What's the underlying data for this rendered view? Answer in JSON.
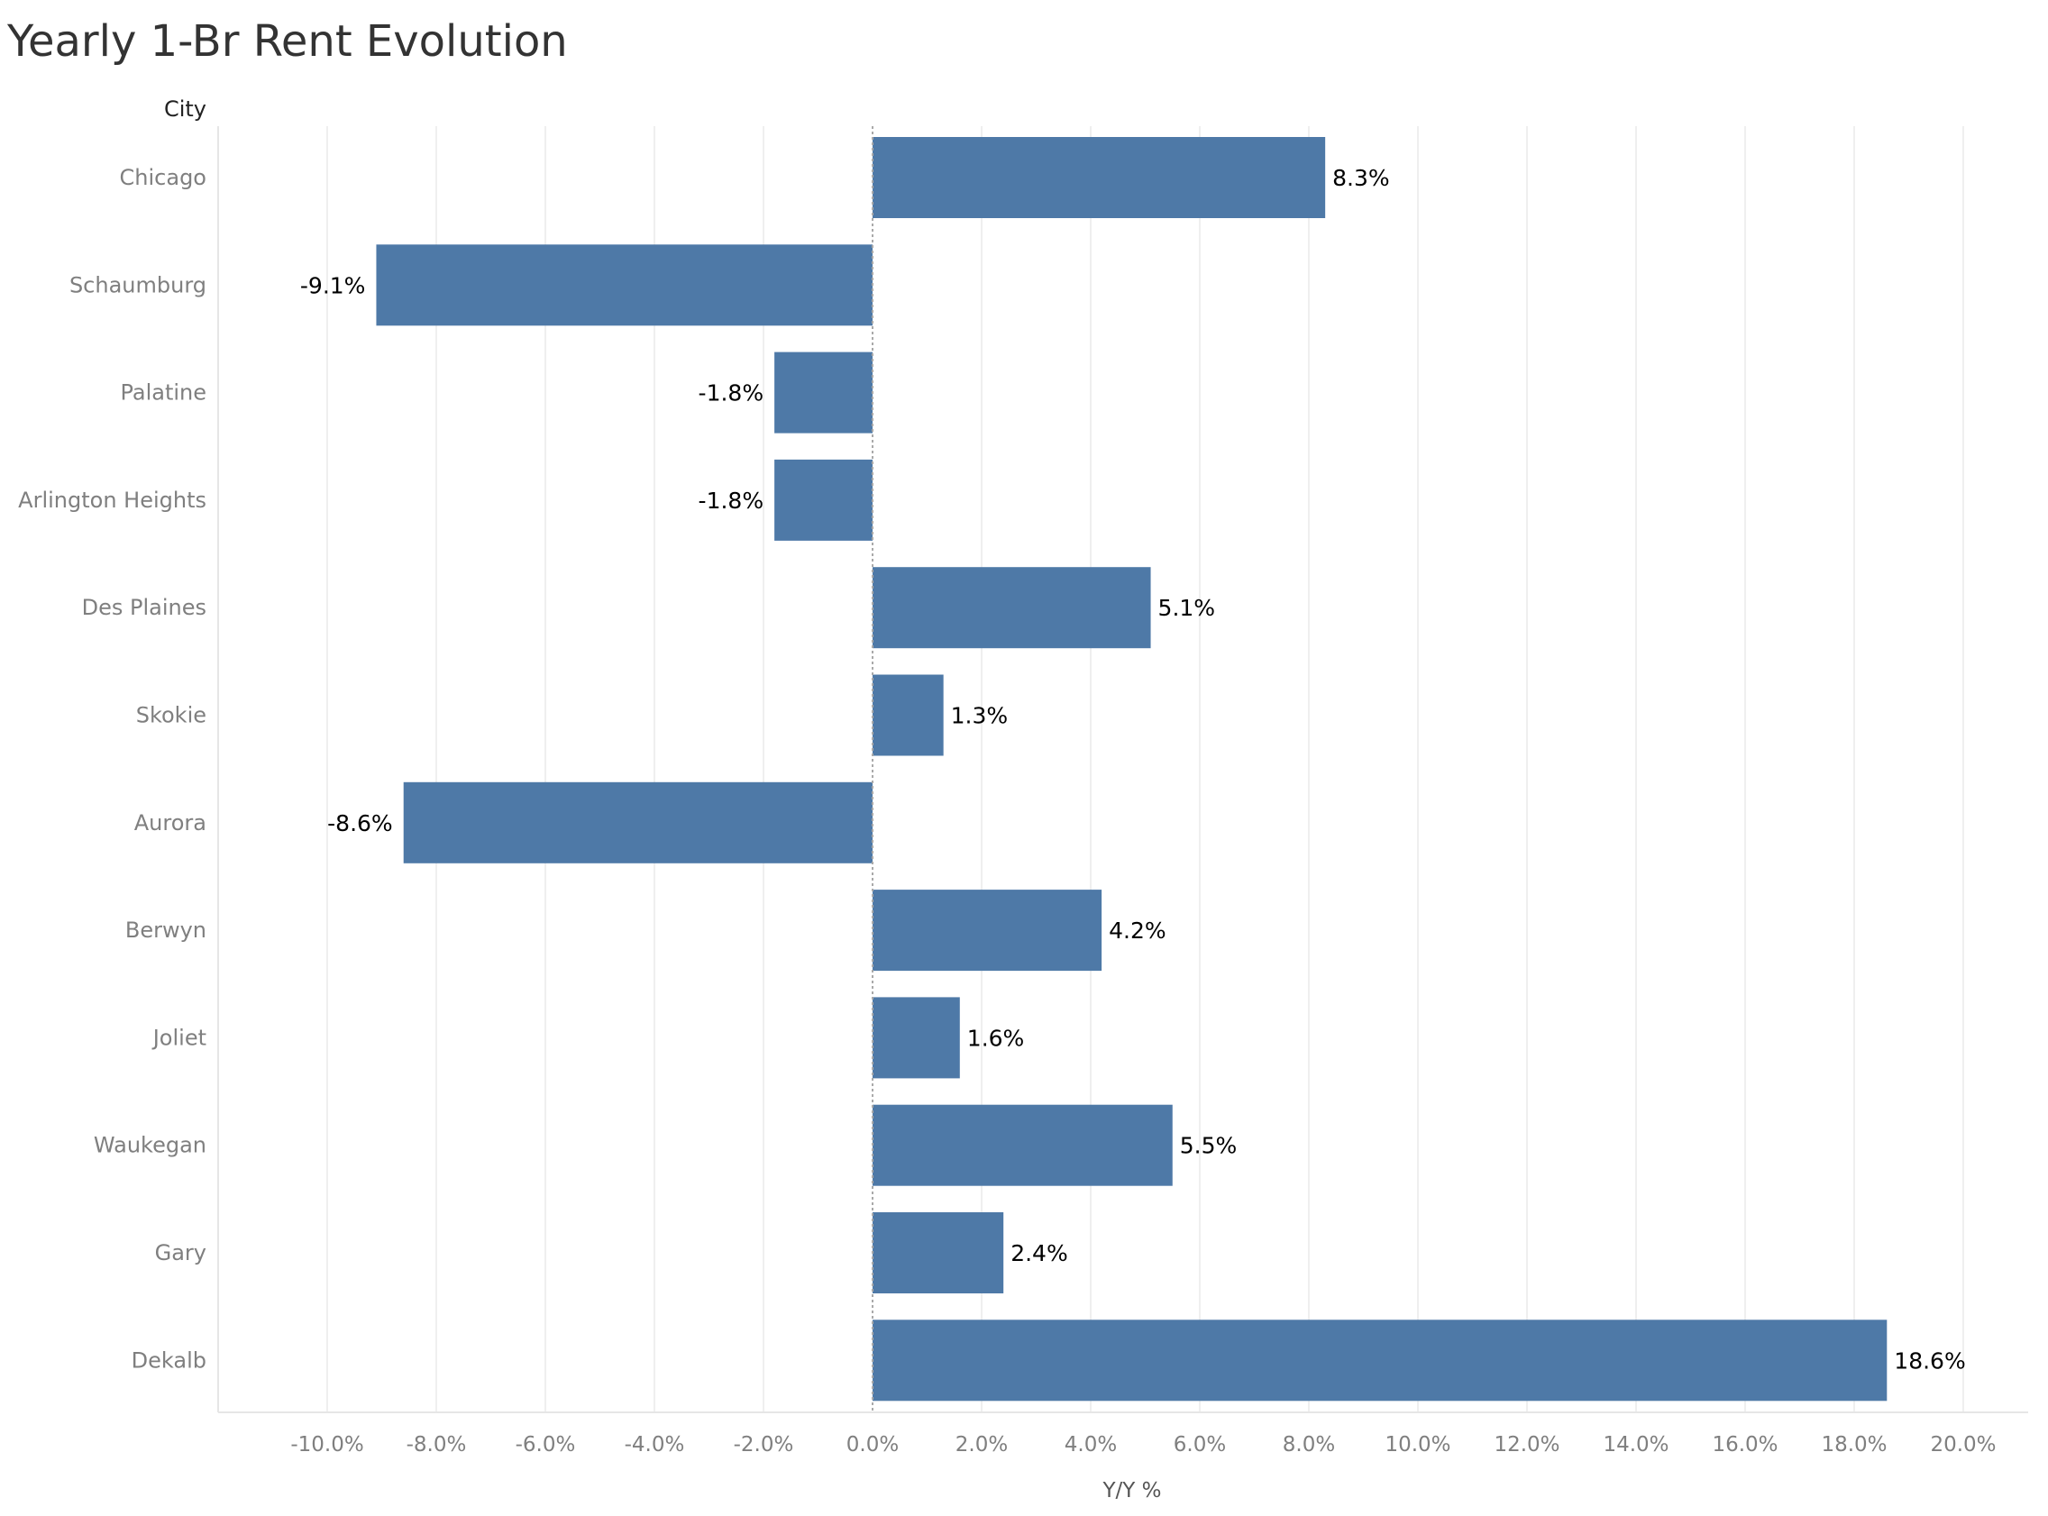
{
  "title": "Yearly 1-Br Rent Evolution",
  "colors": {
    "bar": "#4e79a7",
    "grid": "#efefef",
    "zero_line": "#aaaaaa"
  },
  "chart_data": {
    "type": "bar",
    "orientation": "horizontal",
    "title": "Yearly 1-Br Rent Evolution",
    "row_header": "City",
    "xlabel": "Y/Y %",
    "ylabel": "",
    "xlim": [
      -12,
      22
    ],
    "x_ticks": [
      -10,
      -8,
      -6,
      -4,
      -2,
      0,
      2,
      4,
      6,
      8,
      10,
      12,
      14,
      16,
      18,
      20
    ],
    "x_tick_labels": [
      "-10.0%",
      "-8.0%",
      "-6.0%",
      "-4.0%",
      "-2.0%",
      "0.0%",
      "2.0%",
      "4.0%",
      "6.0%",
      "8.0%",
      "10.0%",
      "12.0%",
      "14.0%",
      "16.0%",
      "18.0%",
      "20.0%"
    ],
    "categories": [
      "Chicago",
      "Schaumburg",
      "Palatine",
      "Arlington Heights",
      "Des Plaines",
      "Skokie",
      "Aurora",
      "Berwyn",
      "Joliet",
      "Waukegan",
      "Gary",
      "Dekalb"
    ],
    "values": [
      8.3,
      -9.1,
      -1.8,
      -1.8,
      5.1,
      1.3,
      -8.6,
      4.2,
      1.6,
      5.5,
      2.4,
      18.6
    ],
    "value_labels": [
      "8.3%",
      "-9.1%",
      "-1.8%",
      "-1.8%",
      "5.1%",
      "1.3%",
      "-8.6%",
      "4.2%",
      "1.6%",
      "5.5%",
      "2.4%",
      "18.6%"
    ],
    "grid": "vertical",
    "legend": "none"
  }
}
